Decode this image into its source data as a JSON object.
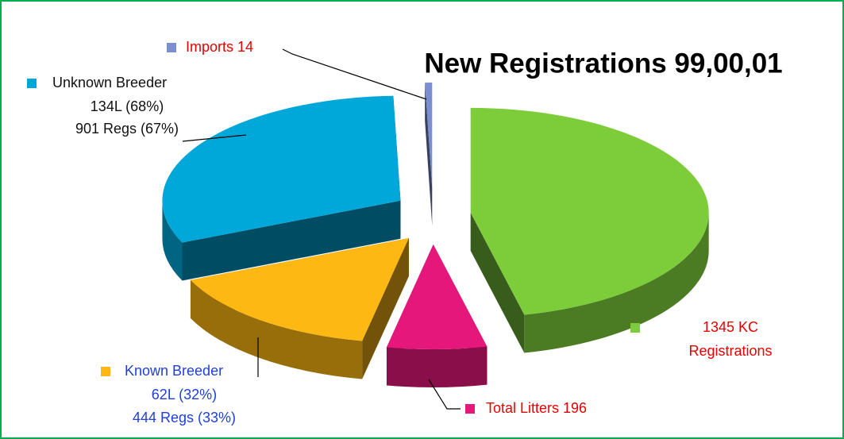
{
  "chart_data": {
    "type": "pie3d",
    "title": "New Registrations 99,00,01",
    "categories": [
      [
        "1345 KC",
        "Registrations"
      ],
      [
        "Total Litters 196"
      ],
      [
        "Known Breeder",
        "62L (32%)",
        "444 Regs (33%)"
      ],
      [
        "Unknown Breeder",
        "134L (68%)",
        "901 Regs (67%)"
      ],
      [
        "Imports 14"
      ]
    ],
    "values": [
      1345,
      196,
      444,
      901,
      14
    ],
    "colors": [
      "#7dcd3b",
      "#e6177a",
      "#fdb813",
      "#00a8d9",
      "#7b8fd0"
    ],
    "label_colors": [
      "#e60000",
      "#e60000",
      "#1f3fd8",
      "#111111",
      "#e60000"
    ]
  }
}
